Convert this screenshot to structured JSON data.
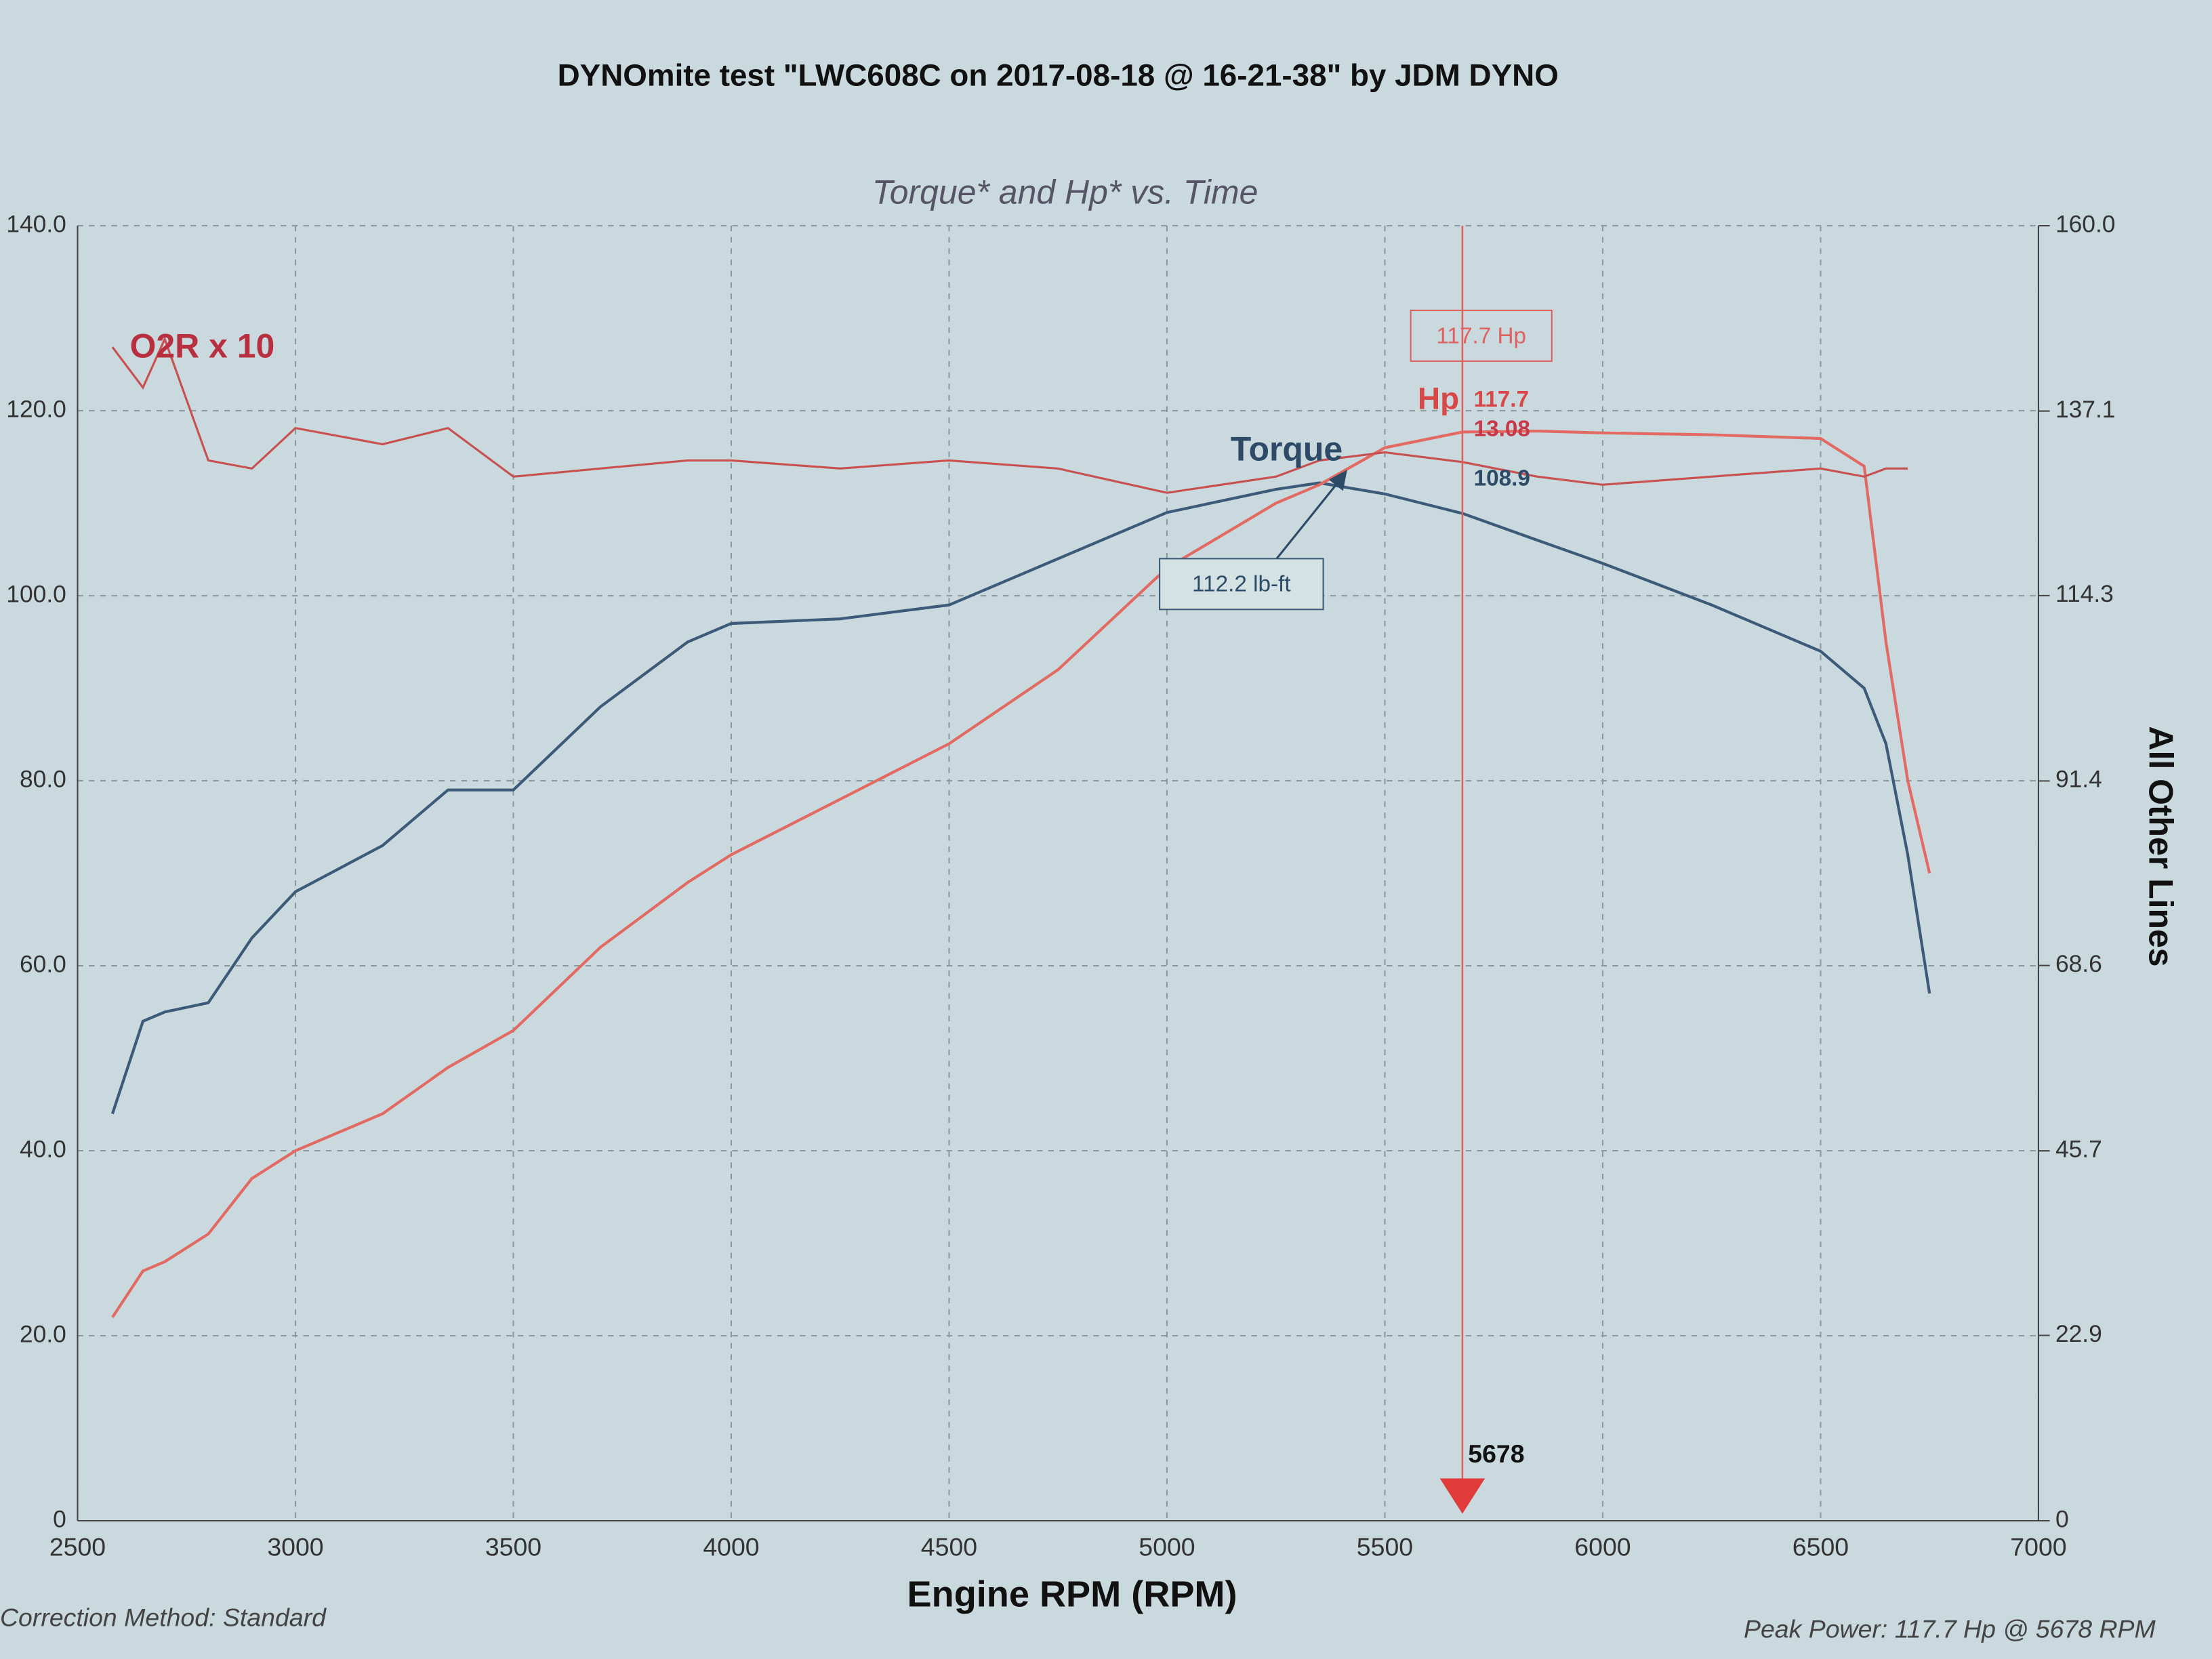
{
  "chart_data": {
    "type": "line",
    "title": "DYNOmite test \"LWC608C on 2017-08-18 @ 16-21-38\" by JDM DYNO",
    "subtitle": "Torque* and Hp* vs. Time",
    "x_label": "Engine RPM (RPM)",
    "y2_label": "All Other Lines",
    "footer_left": "Correction Method: Standard",
    "footer_right": "Peak Power: 117.7 Hp @ 5678 RPM",
    "x": [
      2580,
      2650,
      2700,
      2800,
      2900,
      3000,
      3200,
      3350,
      3500,
      3700,
      3900,
      4000,
      4250,
      4500,
      4750,
      5000,
      5250,
      5350,
      5500,
      5678,
      5850,
      6000,
      6250,
      6500,
      6600,
      6650,
      6700,
      6750
    ],
    "series": [
      {
        "name": "Torque",
        "color": "#3d5a78",
        "values": [
          44,
          54,
          55,
          56,
          63,
          68,
          73,
          79,
          79,
          88,
          95,
          97,
          97.5,
          99,
          104,
          109,
          111.5,
          112.2,
          111,
          108.9,
          106,
          103.5,
          99,
          94,
          90,
          84,
          72,
          57
        ]
      },
      {
        "name": "Hp",
        "color": "#e26a62",
        "values": [
          22,
          27,
          28,
          31,
          37,
          40,
          44,
          49,
          53,
          62,
          69,
          72,
          78,
          84,
          92,
          103,
          110,
          112,
          116,
          117.7,
          117.8,
          117.6,
          117.4,
          117,
          114,
          95,
          80,
          70
        ]
      },
      {
        "name": "O2R x 10",
        "color": "#c85050",
        "axis": "y2",
        "values": [
          145,
          140,
          146,
          131,
          130,
          135,
          133,
          135,
          129,
          130,
          131,
          131,
          130,
          131,
          130,
          127,
          129,
          131,
          132,
          130.8,
          129,
          128,
          129,
          130,
          129,
          130,
          130,
          null
        ]
      }
    ],
    "xlim": [
      2500,
      7000
    ],
    "xticks": [
      2500,
      3000,
      3500,
      4000,
      4500,
      5000,
      5500,
      6000,
      6500,
      7000
    ],
    "ylim": [
      0,
      140
    ],
    "yticks": [
      0,
      {
        "value": 20,
        "label": "20.0"
      },
      {
        "value": 40,
        "label": "40.0"
      },
      {
        "value": 60,
        "label": "60.0"
      },
      {
        "value": 80,
        "label": "80.0"
      },
      {
        "value": 100,
        "label": "100.0"
      },
      {
        "value": 120,
        "label": "120.0"
      },
      {
        "value": 140,
        "label": "140.0"
      }
    ],
    "y2lim": [
      0,
      160
    ],
    "y2ticks": [
      0,
      22.9,
      45.7,
      68.6,
      91.4,
      114.3,
      137.1,
      {
        "value": 160,
        "label": "160.0"
      }
    ],
    "grid": true,
    "cursor_x": 5678,
    "cursor_readouts": [
      117.7,
      13.08,
      108.9
    ],
    "annotations": [
      "117.7 Hp",
      "112.2 lb-ft"
    ]
  }
}
